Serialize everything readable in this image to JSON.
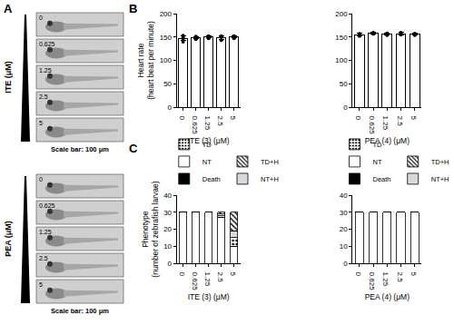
{
  "figure": {
    "panel_labels": [
      "A",
      "B",
      "C"
    ],
    "panel_a": [
      {
        "label": "ITE (μM)",
        "doses": [
          "0",
          "0.625",
          "1.25",
          "2.5",
          "5"
        ],
        "scale_bar": "Scale bar: 100 μm"
      },
      {
        "label": "PEA (μM)",
        "doses": [
          "0",
          "0.625",
          "1.25",
          "2.5",
          "5"
        ],
        "scale_bar": "Scale bar: 100 μm"
      }
    ]
  },
  "chart_data": [
    {
      "type": "bar",
      "ylabel": "Heart rate\n(heart beat per minute)",
      "xlabel": "ITE (3) (μM)",
      "categories": [
        "0",
        "0.625",
        "1.25",
        "2.5",
        "5"
      ],
      "values": [
        147,
        149,
        150,
        149,
        150
      ],
      "errors": [
        5,
        2,
        2,
        4,
        2
      ],
      "points": [
        [
          153,
          140,
          148,
          147
        ],
        [
          145,
          150,
          150,
          151
        ],
        [
          147,
          151,
          150,
          152
        ],
        [
          143,
          152,
          150,
          151
        ],
        [
          147,
          151,
          151,
          152
        ]
      ],
      "color": "#ffffff",
      "ylim": [
        0,
        200
      ],
      "yticks": [
        0,
        50,
        100,
        150,
        200
      ]
    },
    {
      "type": "bar",
      "xlabel": "PEA (4) (μM)",
      "categories": [
        "0",
        "0.625",
        "1.25",
        "2.5",
        "5"
      ],
      "values": [
        155,
        158,
        156,
        157,
        156
      ],
      "errors": [
        3,
        2,
        2,
        3,
        2
      ],
      "points": [
        [
          152,
          156,
          157,
          156
        ],
        [
          157,
          158,
          159,
          157
        ],
        [
          154,
          157,
          155,
          158
        ],
        [
          155,
          158,
          156,
          159
        ],
        [
          154,
          157,
          155,
          157
        ]
      ],
      "color": "#ffffff",
      "ylim": [
        0,
        200
      ],
      "yticks": [
        0,
        50,
        100,
        150,
        200
      ]
    },
    {
      "type": "bar",
      "stacked": true,
      "legend": "top",
      "ylabel": "Phenotype\n(number of zebrafish larvae)",
      "xlabel": "ITE (3) (μM)",
      "categories": [
        "0",
        "0.625",
        "1.25",
        "2.5",
        "5"
      ],
      "series": [
        {
          "name": "Death",
          "color": "#000000",
          "marker": "solid",
          "values": [
            0,
            0,
            0,
            0,
            0
          ]
        },
        {
          "name": "NT",
          "color": "#ffffff",
          "marker": "solid",
          "values": [
            30,
            30,
            30,
            27,
            10
          ]
        },
        {
          "name": "TD",
          "color": "#ffffff",
          "marker": "dotted",
          "values": [
            0,
            0,
            0,
            1,
            5
          ]
        },
        {
          "name": "NT+H",
          "color": "#d9d9d9",
          "marker": "solid",
          "values": [
            0,
            0,
            0,
            1,
            4
          ]
        },
        {
          "name": "TD+H",
          "color": "#ffffff",
          "marker": "hatched",
          "values": [
            0,
            0,
            0,
            1,
            11
          ]
        }
      ],
      "ylim": [
        0,
        40
      ],
      "yticks": [
        0,
        10,
        20,
        30,
        40
      ]
    },
    {
      "type": "bar",
      "stacked": true,
      "legend": "top",
      "xlabel": "PEA (4) (μM)",
      "categories": [
        "0",
        "0.625",
        "1.25",
        "2.5",
        "5"
      ],
      "series": [
        {
          "name": "Death",
          "color": "#000000",
          "marker": "solid",
          "values": [
            0,
            0,
            0,
            0,
            0
          ]
        },
        {
          "name": "NT",
          "color": "#ffffff",
          "marker": "solid",
          "values": [
            30,
            30,
            30,
            30,
            30
          ]
        },
        {
          "name": "TD",
          "color": "#ffffff",
          "marker": "dotted",
          "values": [
            0,
            0,
            0,
            0,
            0
          ]
        },
        {
          "name": "NT+H",
          "color": "#d9d9d9",
          "marker": "solid",
          "values": [
            0,
            0,
            0,
            0,
            0
          ]
        },
        {
          "name": "TD+H",
          "color": "#ffffff",
          "marker": "hatched",
          "values": [
            0,
            0,
            0,
            0,
            0
          ]
        }
      ],
      "ylim": [
        0,
        40
      ],
      "yticks": [
        0,
        10,
        20,
        30,
        40
      ]
    }
  ]
}
